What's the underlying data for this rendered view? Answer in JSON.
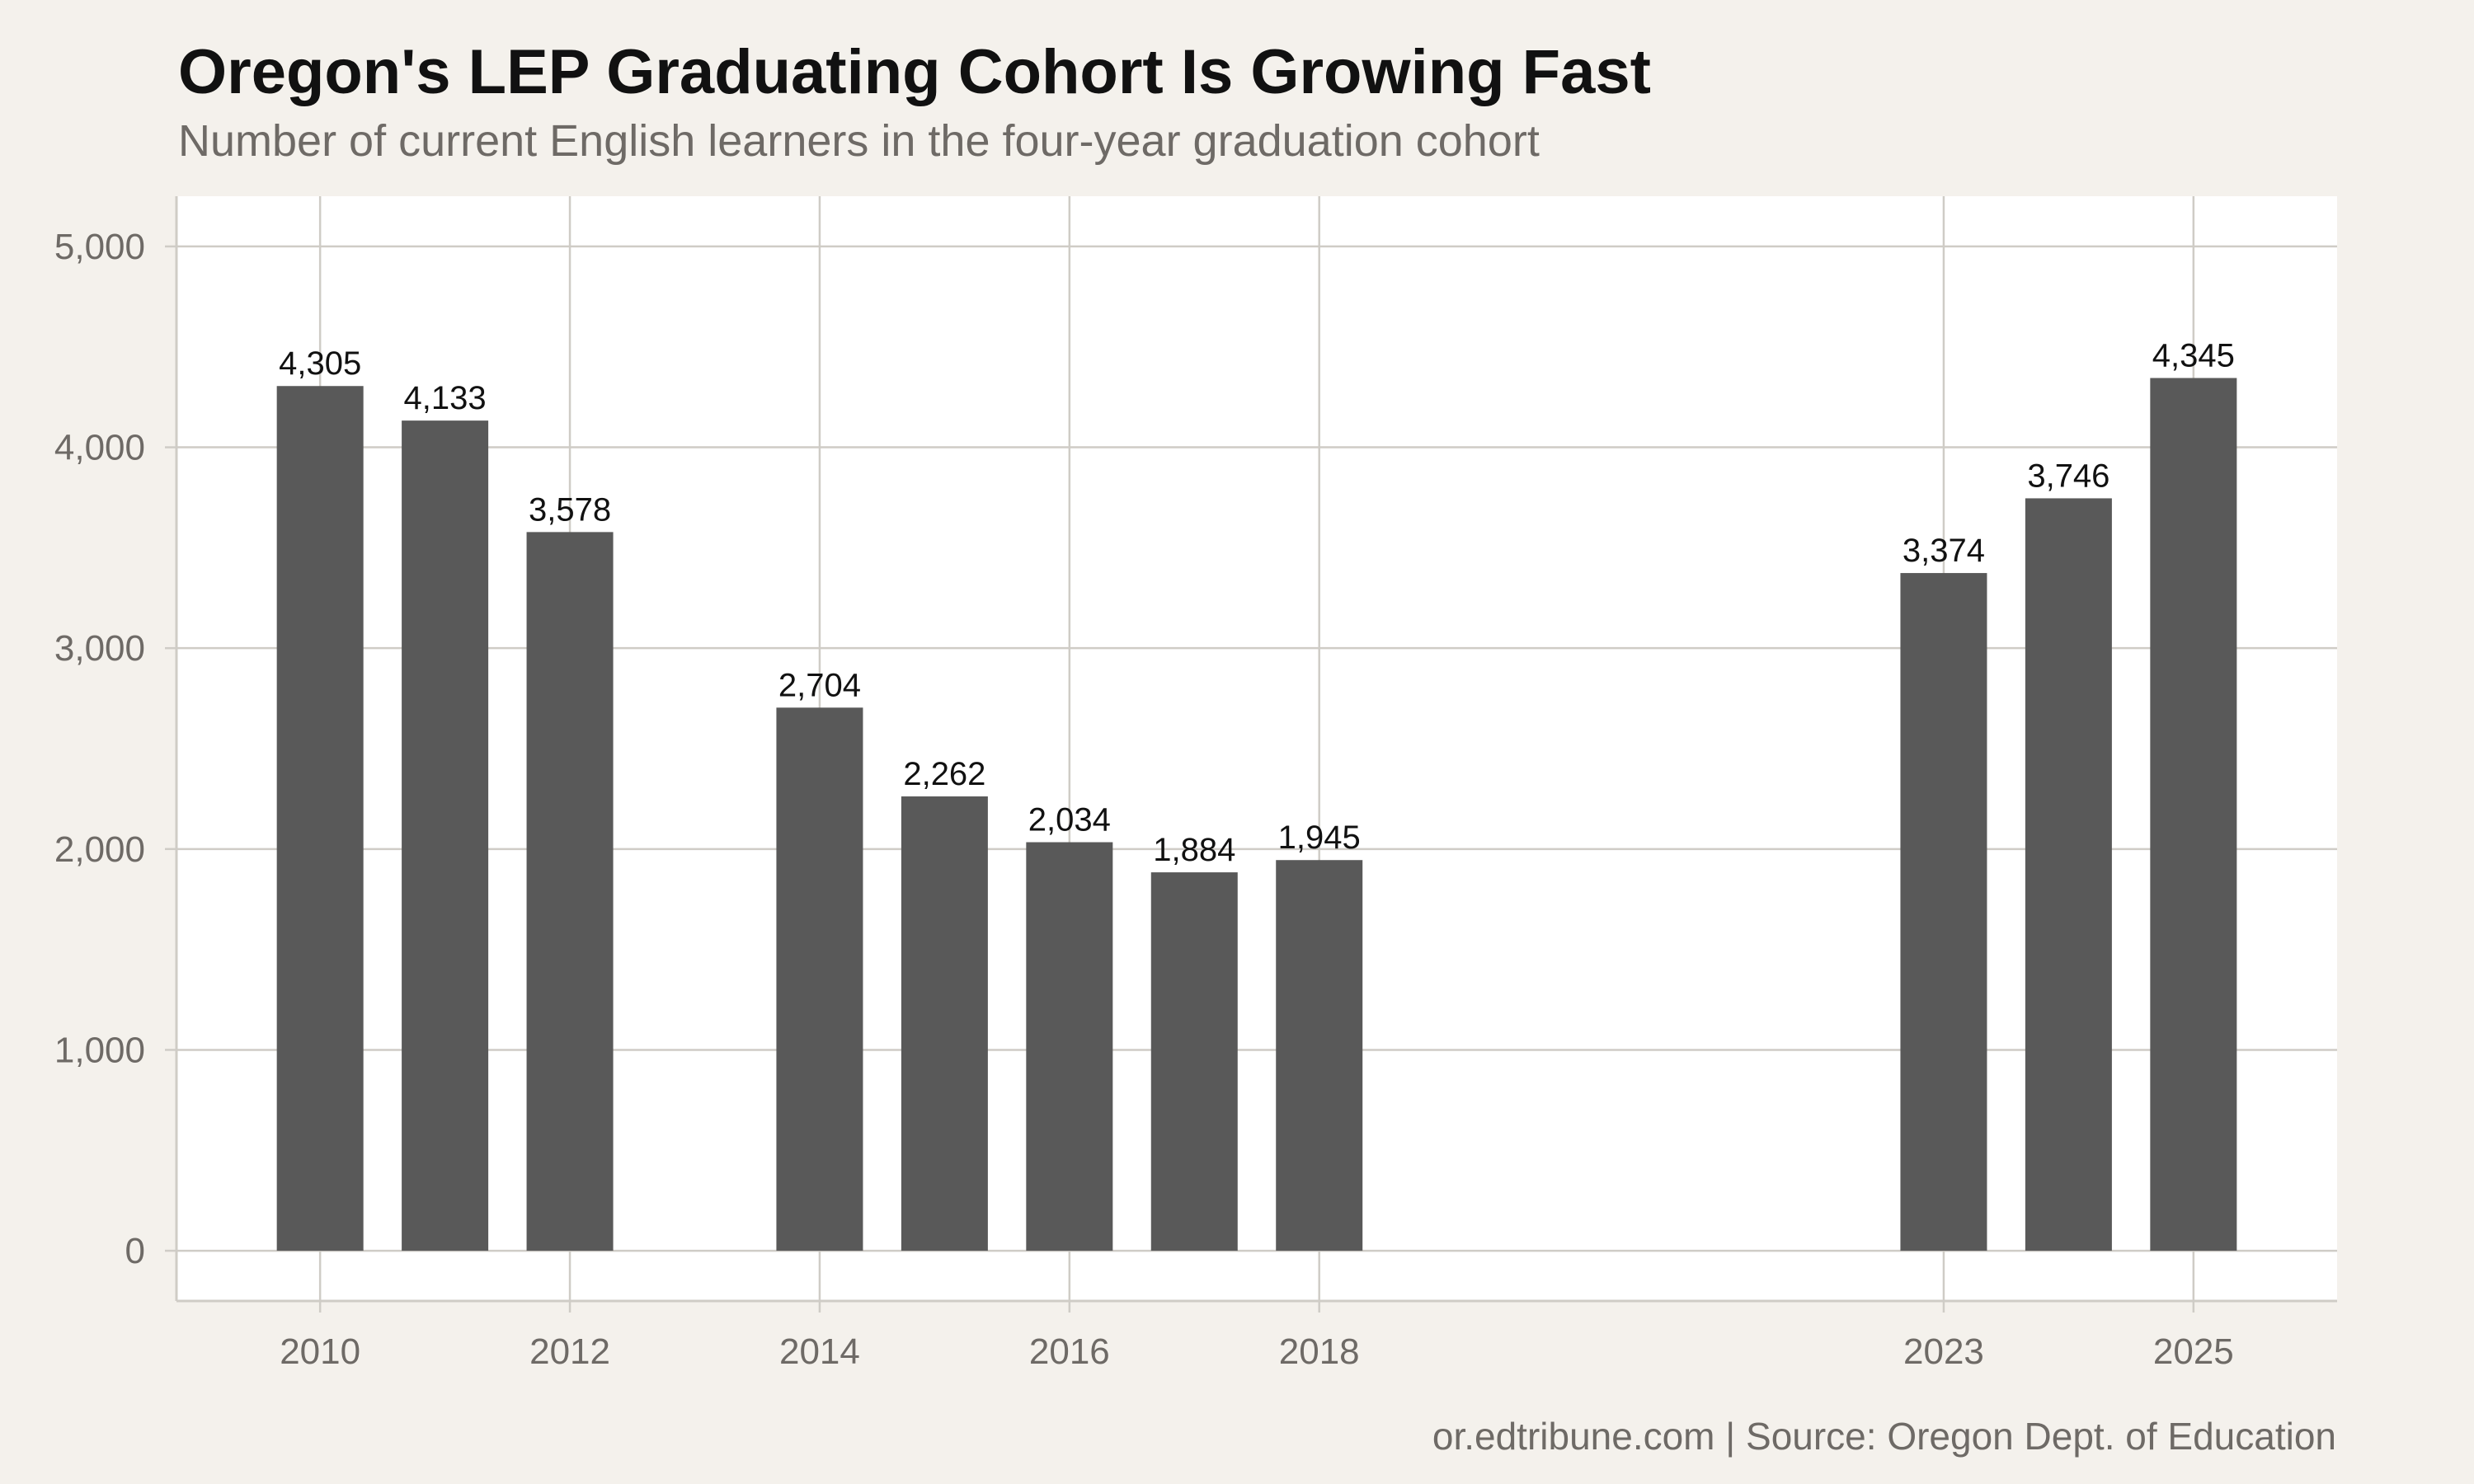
{
  "chart_data": {
    "type": "bar",
    "title": "Oregon's LEP Graduating Cohort Is Growing Fast",
    "subtitle": "Number of current English learners in the four-year graduation cohort",
    "caption": "or.edtribune.com | Source: Oregon Dept. of Education",
    "xlabel": "",
    "ylabel": "",
    "x": [
      2010,
      2011,
      2012,
      2014,
      2015,
      2016,
      2017,
      2018,
      2023,
      2024,
      2025
    ],
    "values": [
      4305,
      4133,
      3578,
      2704,
      2262,
      2034,
      1884,
      1945,
      3374,
      3746,
      4345
    ],
    "data_labels": [
      "4,305",
      "4,133",
      "3,578",
      "2,704",
      "2,262",
      "2,034",
      "1,884",
      "1,945",
      "3,374",
      "3,746",
      "4,345"
    ],
    "x_ticks": [
      2010,
      2012,
      2014,
      2016,
      2018,
      2023,
      2025
    ],
    "x_tick_labels": [
      "2010",
      "2012",
      "2014",
      "2016",
      "2018",
      "2023",
      "2025"
    ],
    "y_ticks": [
      0,
      1000,
      2000,
      3000,
      4000,
      5000
    ],
    "y_tick_labels": [
      "0",
      "1,000",
      "2,000",
      "3,000",
      "4,000",
      "5,000"
    ],
    "ylim": [
      -250,
      5250
    ],
    "xlim": [
      2008.85,
      2026.15
    ],
    "grid": true,
    "legend": "none",
    "colors": {
      "bar": "#595959",
      "background": "#f4f1ec",
      "panel": "#ffffff",
      "grid": "#cfccc6",
      "axis_text": "#6e6a66",
      "label_text": "#111111"
    }
  }
}
